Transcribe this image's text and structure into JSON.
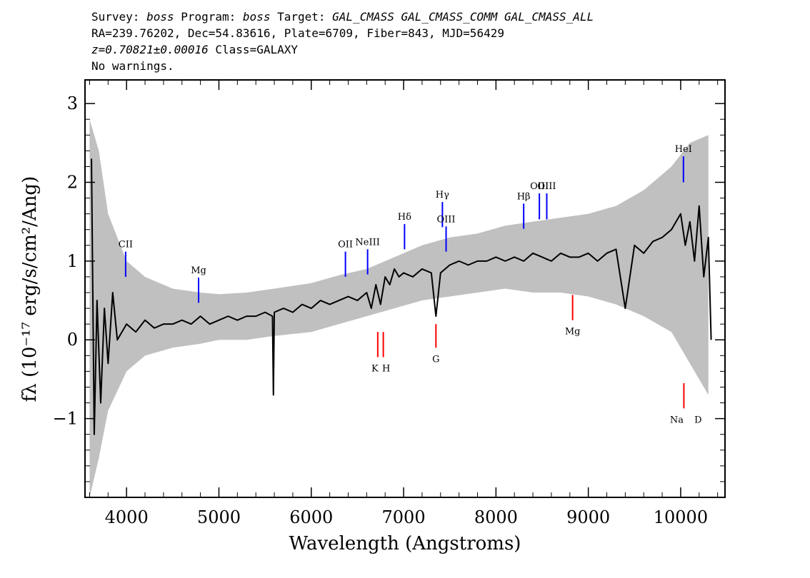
{
  "header": {
    "line1": {
      "a": "Survey: ",
      "b": "boss",
      "c": " Program: ",
      "d": "boss",
      "e": " Target: ",
      "f": "GAL_CMASS GAL_CMASS_COMM GAL_CMASS_ALL"
    },
    "line2": "RA=239.76202, Dec=54.83616, Plate=6709, Fiber=843, MJD=56429",
    "line3": {
      "z": "z=0.70821±0.00016",
      "cls": " Class=GALAXY"
    },
    "line4": "No warnings."
  },
  "chart_data": {
    "type": "line",
    "xlabel": "Wavelength (Angstroms)",
    "ylabel": "fλ (10⁻¹⁷ erg/s/cm²/Ang)",
    "xlim": [
      3550,
      10480
    ],
    "ylim": [
      -2.0,
      3.3
    ],
    "xticks": [
      4000,
      5000,
      6000,
      7000,
      8000,
      9000,
      10000
    ],
    "yticks": [
      -1,
      0,
      1,
      2,
      3
    ],
    "ytick_labels": [
      "−1",
      "0",
      "1",
      "2",
      "3"
    ],
    "grid": false,
    "legend": "none",
    "series": [
      {
        "color": "#c0c0c0",
        "description": "error envelope",
        "x": [
          3600,
          3700,
          3800,
          4000,
          4200,
          4500,
          4800,
          5000,
          5300,
          5600,
          6000,
          6300,
          6600,
          6900,
          7200,
          7500,
          7800,
          8100,
          8400,
          8700,
          9000,
          9300,
          9600,
          9900,
          10100,
          10300
        ],
        "y_upper": [
          2.8,
          2.4,
          1.6,
          1.0,
          0.8,
          0.65,
          0.6,
          0.58,
          0.6,
          0.65,
          0.72,
          0.82,
          0.9,
          1.05,
          1.2,
          1.3,
          1.35,
          1.45,
          1.5,
          1.55,
          1.6,
          1.7,
          1.9,
          2.2,
          2.5,
          2.6
        ],
        "y_lower": [
          -2.0,
          -1.5,
          -0.9,
          -0.4,
          -0.2,
          -0.1,
          -0.05,
          0.0,
          0.0,
          0.05,
          0.1,
          0.2,
          0.3,
          0.4,
          0.5,
          0.55,
          0.6,
          0.65,
          0.6,
          0.6,
          0.55,
          0.45,
          0.3,
          0.1,
          -0.3,
          -0.7
        ]
      },
      {
        "color": "#000000",
        "description": "flux",
        "x": [
          3620,
          3650,
          3680,
          3720,
          3760,
          3800,
          3850,
          3900,
          4000,
          4100,
          4200,
          4300,
          4400,
          4500,
          4600,
          4700,
          4800,
          4900,
          5000,
          5100,
          5200,
          5300,
          5400,
          5500,
          5580,
          5590,
          5600,
          5700,
          5800,
          5900,
          6000,
          6100,
          6200,
          6300,
          6400,
          6500,
          6600,
          6650,
          6700,
          6750,
          6800,
          6850,
          6900,
          6950,
          7000,
          7100,
          7200,
          7300,
          7350,
          7400,
          7450,
          7500,
          7600,
          7700,
          7800,
          7900,
          8000,
          8100,
          8200,
          8300,
          8400,
          8500,
          8600,
          8700,
          8800,
          8900,
          9000,
          9100,
          9200,
          9300,
          9400,
          9500,
          9600,
          9700,
          9800,
          9900,
          10000,
          10050,
          10100,
          10150,
          10200,
          10250,
          10300,
          10330
        ],
        "y": [
          2.3,
          -1.2,
          0.5,
          -0.8,
          0.4,
          -0.3,
          0.6,
          0.0,
          0.2,
          0.1,
          0.25,
          0.15,
          0.2,
          0.2,
          0.25,
          0.2,
          0.3,
          0.2,
          0.25,
          0.3,
          0.25,
          0.3,
          0.3,
          0.35,
          0.3,
          -0.7,
          0.35,
          0.4,
          0.35,
          0.45,
          0.4,
          0.5,
          0.45,
          0.5,
          0.55,
          0.5,
          0.6,
          0.4,
          0.7,
          0.45,
          0.8,
          0.7,
          0.9,
          0.8,
          0.85,
          0.8,
          0.9,
          0.85,
          0.3,
          0.85,
          0.9,
          0.95,
          1.0,
          0.95,
          1.0,
          1.0,
          1.05,
          1.0,
          1.05,
          1.0,
          1.1,
          1.05,
          1.0,
          1.1,
          1.05,
          1.05,
          1.1,
          1.0,
          1.1,
          1.15,
          0.4,
          1.2,
          1.1,
          1.25,
          1.3,
          1.4,
          1.6,
          1.2,
          1.5,
          1.0,
          1.7,
          0.8,
          1.3,
          0.0
        ]
      }
    ],
    "emission_lines": [
      {
        "label": "CII",
        "x": 3990,
        "y0": 0.8,
        "y1": 1.12
      },
      {
        "label": "Mg",
        "x": 4780,
        "y0": 0.47,
        "y1": 0.79
      },
      {
        "label": "OII",
        "x": 6370,
        "y0": 0.8,
        "y1": 1.12
      },
      {
        "label": "NeIII",
        "x": 6610,
        "y0": 0.83,
        "y1": 1.15
      },
      {
        "label": "Hδ",
        "x": 7010,
        "y0": 1.15,
        "y1": 1.47
      },
      {
        "label": "Hγ",
        "x": 7420,
        "y0": 1.43,
        "y1": 1.75
      },
      {
        "label": "OIII",
        "x": 7460,
        "y0": 1.12,
        "y1": 1.44
      },
      {
        "label": "Hβ",
        "x": 8300,
        "y0": 1.41,
        "y1": 1.73
      },
      {
        "label": "OIII",
        "x": 8470,
        "y0": 1.53,
        "y1": 1.86
      },
      {
        "label": "OIII",
        "x": 8550,
        "y0": 1.53,
        "y1": 1.86
      },
      {
        "label": "HeI",
        "x": 10030,
        "y0": 2.0,
        "y1": 2.33
      }
    ],
    "absorption_lines": [
      {
        "label": "K",
        "x": 6720,
        "y0": -0.22,
        "y1": 0.1
      },
      {
        "label": "H",
        "x": 6780,
        "y0": -0.22,
        "y1": 0.1
      },
      {
        "label": "G",
        "x": 7350,
        "y0": -0.1,
        "y1": 0.2
      },
      {
        "label": "Mg",
        "x": 8830,
        "y0": 0.25,
        "y1": 0.57
      },
      {
        "label": "Na",
        "x": 10050,
        "y0": -0.87,
        "y1": -0.55
      },
      {
        "label": "D",
        "x": 10050,
        "y0": -0.87,
        "y1": -0.55
      }
    ]
  }
}
